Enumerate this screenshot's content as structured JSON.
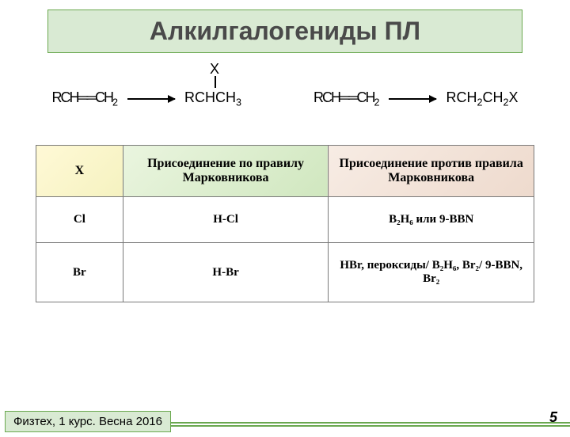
{
  "title": "Алкилгалогениды ПЛ",
  "reaction1": {
    "reactant": "RCH══CH",
    "reactant_sub": "2",
    "x_label": "X",
    "product": "RCHCH",
    "product_sub": "3"
  },
  "reaction2": {
    "reactant": "RCH══CH",
    "reactant_sub": "2",
    "product": "RCH",
    "product_mid_sub": "2",
    "product2": "CH",
    "product_sub": "2",
    "product_tail": "X"
  },
  "table": {
    "headers": {
      "x": "X",
      "mark": "Присоединение по правилу Марковникова",
      "anti": "Присоединение против правила Марковникова"
    },
    "rows": [
      {
        "x": "Cl",
        "mark": "H-Cl",
        "anti_plain": "B₂H₆ или 9-BBN"
      },
      {
        "x": "Br",
        "mark": "H-Br",
        "anti_plain": "HBr, пероксиды/ B₂H₆, Br₂/ 9-BBN, Br₂"
      }
    ]
  },
  "footer": "Физтех, 1 курс. Весна 2016",
  "page": "5",
  "colors": {
    "title_bg": "#d9ead3",
    "title_border": "#6aa84f",
    "th_x_bg": "#fff9d6",
    "th_mark_bg": "#eaf5df",
    "th_anti_bg": "#f7ece4",
    "cell_border": "#7a7a7a"
  }
}
